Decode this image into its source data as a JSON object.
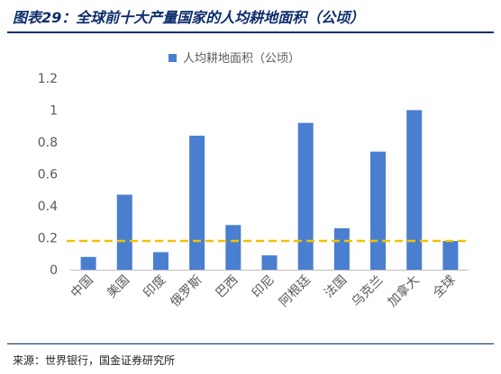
{
  "header": {
    "title": "图表29：全球前十大产量国家的人均耕地面积（公顷）"
  },
  "footer": {
    "source": "来源：世界银行，国金证券研究所"
  },
  "chart_data": {
    "type": "bar",
    "categories": [
      "中国",
      "美国",
      "印度",
      "俄罗斯",
      "巴西",
      "印尼",
      "阿根廷",
      "法国",
      "乌克兰",
      "加拿大",
      "全球"
    ],
    "series": [
      {
        "name": "人均耕地面积（公顷）",
        "values": [
          0.08,
          0.47,
          0.11,
          0.84,
          0.28,
          0.09,
          0.92,
          0.26,
          0.74,
          1.0,
          0.18
        ]
      }
    ],
    "reference_line": {
      "value": 0.18,
      "style": "dashed",
      "color": "#f2c200"
    },
    "ylim": [
      0,
      1.2
    ],
    "yticks": [
      "0",
      "0.2",
      "0.4",
      "0.6",
      "0.8",
      "1",
      "1.2"
    ],
    "xlabel": "",
    "ylabel": "",
    "grid": false,
    "legend": "top-center",
    "colors": {
      "bar": "#4a7ecf",
      "reference": "#f2c200",
      "title": "#0d2d6c"
    }
  }
}
